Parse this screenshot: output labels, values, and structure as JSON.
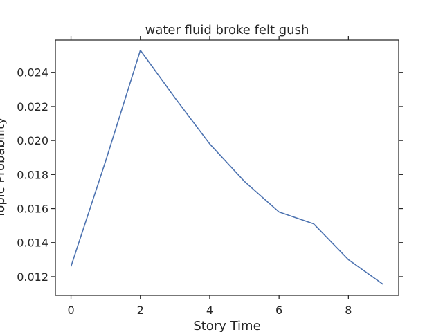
{
  "chart_data": {
    "type": "line",
    "title": "water fluid broke felt gush",
    "xlabel": "Story Time",
    "ylabel": "Topic Probability",
    "xlim": [
      -0.45,
      9.45
    ],
    "ylim": [
      0.0109,
      0.0259
    ],
    "xticks": [
      0,
      2,
      4,
      6,
      8
    ],
    "yticks": [
      0.012,
      0.014,
      0.016,
      0.018,
      0.02,
      0.022,
      0.024
    ],
    "ytick_labels": [
      "0.012",
      "0.014",
      "0.016",
      "0.018",
      "0.020",
      "0.022",
      "0.024"
    ],
    "grid": false,
    "series": [
      {
        "color": "#4c72b0",
        "x": [
          0,
          1,
          2,
          3,
          4,
          5,
          6,
          7,
          8,
          9
        ],
        "y": [
          0.0126,
          0.0188,
          0.0253,
          0.0225,
          0.0198,
          0.0176,
          0.0158,
          0.0151,
          0.013,
          0.01155
        ]
      }
    ]
  }
}
